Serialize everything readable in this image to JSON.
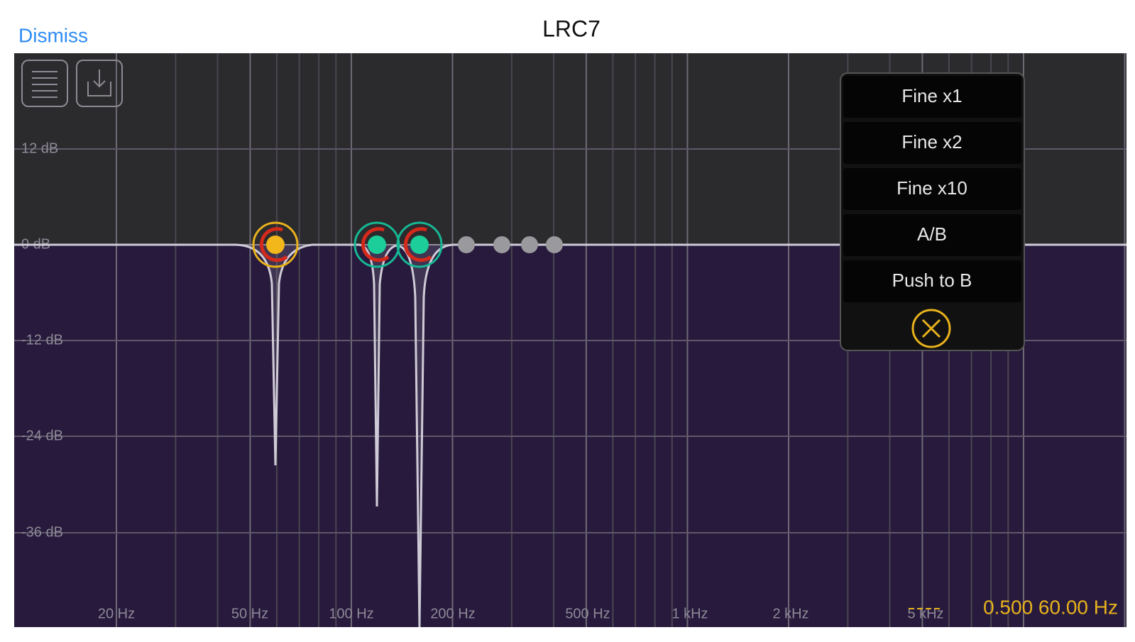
{
  "header": {
    "dismiss": "Dismiss",
    "title": "LRC7"
  },
  "plot": {
    "db_labels": [
      "12 dB",
      "0 dB",
      "-12 dB",
      "-24 dB",
      "-36 dB"
    ],
    "freq_labels": [
      "20 Hz",
      "50 Hz",
      "100 Hz",
      "200 Hz",
      "500 Hz",
      "1 kHz",
      "2 kHz",
      "5 kHz"
    ],
    "readout": "0.500 60.00 Hz"
  },
  "menu": {
    "items": [
      "Fine x1",
      "Fine x2",
      "Fine x10",
      "A/B",
      "Push to B"
    ]
  }
}
